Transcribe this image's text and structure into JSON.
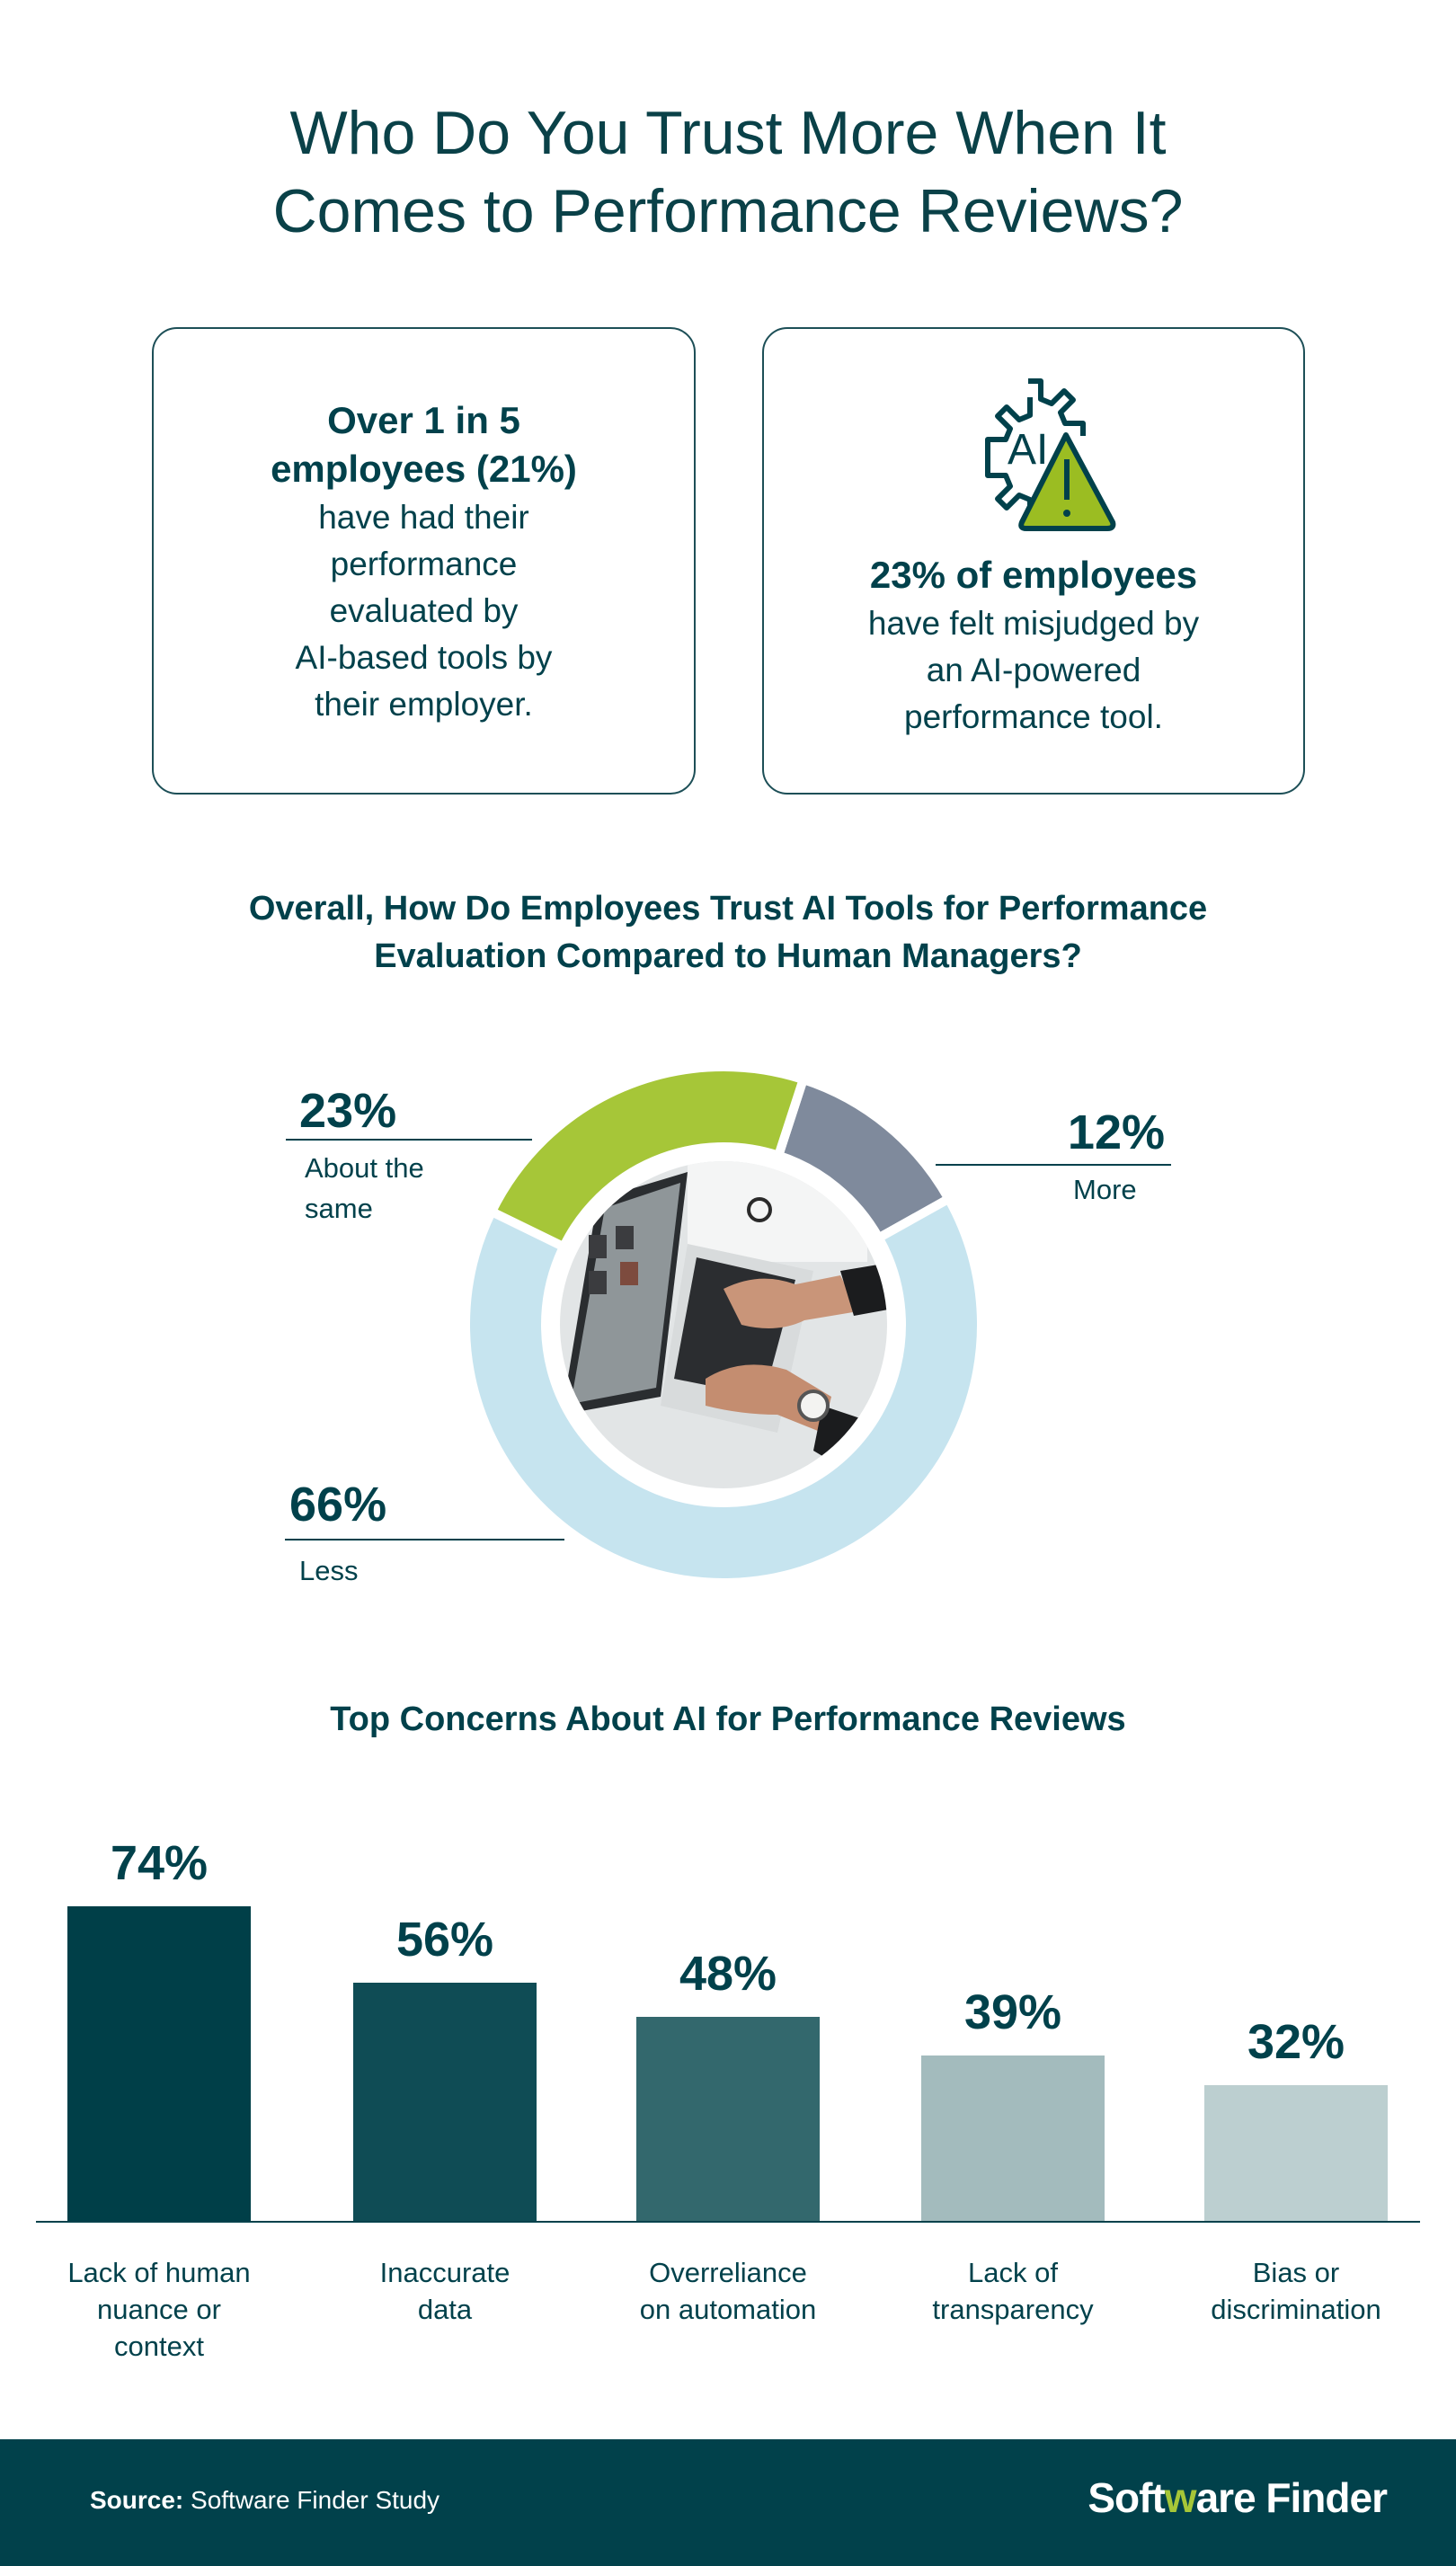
{
  "header": {
    "title_line1": "Who Do You Trust More When It",
    "title_line2": "Comes to Performance Reviews?"
  },
  "cards": [
    {
      "bold_lines": [
        "Over 1 in 5",
        "employees (21%)"
      ],
      "lines": [
        "have had their",
        "performance",
        "evaluated by",
        "AI-based tools by",
        "their employer."
      ]
    },
    {
      "icon": "ai-gear-warning-icon",
      "icon_text": "AI",
      "bold_lines": [
        "23% of employees"
      ],
      "lines": [
        "have felt misjudged by",
        "an AI-powered",
        "performance tool."
      ]
    }
  ],
  "colors": {
    "primary": "#01414b",
    "green": "#a6c638",
    "gray": "#7f8a9c",
    "lightblue": "#c6e4ef"
  },
  "chart_data": [
    {
      "type": "pie",
      "variant": "donut",
      "title": "Overall, How Do Employees Trust AI Tools for Performance Evaluation Compared to Human Managers?",
      "title_line1": "Overall, How Do Employees Trust AI Tools for Performance",
      "title_line2": "Evaluation Compared to Human Managers?",
      "slices": [
        {
          "label": "More",
          "value": 12,
          "display": "12%",
          "color": "#7f8a9c"
        },
        {
          "label": "Less",
          "value": 66,
          "display": "66%",
          "color": "#c6e4ef"
        },
        {
          "label_line1": "About the",
          "label_line2": "same",
          "label": "About the same",
          "value": 23,
          "display": "23%",
          "color": "#a6c638"
        }
      ]
    },
    {
      "type": "bar",
      "title": "Top Concerns About AI for Performance Reviews",
      "ylim": [
        0,
        100
      ],
      "categories": [
        "Lack of human nuance or context",
        "Inaccurate data",
        "Overreliance on automation",
        "Lack of transparency",
        "Bias or discrimination"
      ],
      "category_lines": [
        [
          "Lack of human",
          "nuance or",
          "context"
        ],
        [
          "Inaccurate",
          "data"
        ],
        [
          "Overreliance",
          "on automation"
        ],
        [
          "Lack of",
          "transparency"
        ],
        [
          "Bias or",
          "discrimination"
        ]
      ],
      "values": [
        74,
        56,
        48,
        39,
        32
      ],
      "labels": [
        "74%",
        "56%",
        "48%",
        "39%",
        "32%"
      ],
      "colors": [
        "#003f48",
        "#0f4c55",
        "#33686d",
        "#a3bbbd",
        "#bccfd0"
      ]
    }
  ],
  "footer": {
    "source_label": "Source:",
    "source_text": "Software Finder Study",
    "logo_part1": "Soft",
    "logo_w": "w",
    "logo_part2": "are Finder"
  }
}
